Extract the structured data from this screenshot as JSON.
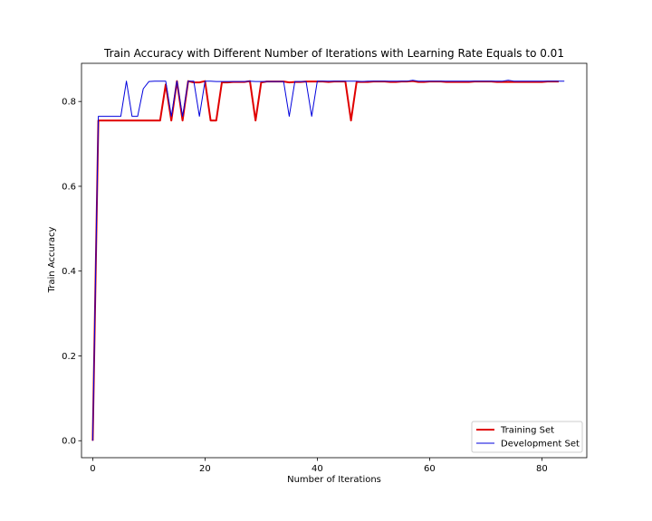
{
  "chart_data": {
    "type": "line",
    "title": "Train Accuracy with Different Number of Iterations with Learning Rate Equals to 0.01",
    "xlabel": "Number of Iterations",
    "ylabel": "Train Accuracy",
    "xlim": [
      -2,
      88
    ],
    "ylim": [
      -0.04,
      0.89
    ],
    "xticks": [
      0,
      20,
      40,
      60,
      80
    ],
    "yticks": [
      0.0,
      0.2,
      0.4,
      0.6,
      0.8
    ],
    "ytick_labels": [
      "0.0",
      "0.2",
      "0.4",
      "0.6",
      "0.8"
    ],
    "grid": false,
    "legend_position": "bottom-right",
    "series": [
      {
        "name": "Training Set",
        "color": "#e00000",
        "values": [
          0.0,
          0.755,
          0.755,
          0.755,
          0.755,
          0.755,
          0.755,
          0.755,
          0.755,
          0.755,
          0.755,
          0.755,
          0.755,
          0.84,
          0.755,
          0.848,
          0.755,
          0.848,
          0.845,
          0.845,
          0.848,
          0.755,
          0.755,
          0.845,
          0.845,
          0.846,
          0.846,
          0.846,
          0.848,
          0.755,
          0.845,
          0.847,
          0.847,
          0.847,
          0.847,
          0.845,
          0.846,
          0.846,
          0.847,
          0.847,
          0.847,
          0.847,
          0.846,
          0.847,
          0.847,
          0.847,
          0.755,
          0.846,
          0.846,
          0.846,
          0.847,
          0.847,
          0.847,
          0.846,
          0.846,
          0.847,
          0.847,
          0.848,
          0.846,
          0.846,
          0.847,
          0.847,
          0.847,
          0.846,
          0.846,
          0.846,
          0.846,
          0.846,
          0.847,
          0.847,
          0.847,
          0.847,
          0.846,
          0.846,
          0.846,
          0.846,
          0.846,
          0.846,
          0.846,
          0.846,
          0.846,
          0.847,
          0.847,
          0.847
        ]
      },
      {
        "name": "Development Set",
        "color": "#0000dd",
        "values": [
          0.0,
          0.765,
          0.765,
          0.765,
          0.765,
          0.765,
          0.848,
          0.765,
          0.765,
          0.83,
          0.847,
          0.848,
          0.848,
          0.848,
          0.765,
          0.848,
          0.765,
          0.848,
          0.848,
          0.765,
          0.848,
          0.848,
          0.847,
          0.847,
          0.847,
          0.847,
          0.847,
          0.847,
          0.848,
          0.847,
          0.847,
          0.847,
          0.847,
          0.847,
          0.847,
          0.765,
          0.847,
          0.847,
          0.847,
          0.765,
          0.848,
          0.848,
          0.848,
          0.848,
          0.848,
          0.848,
          0.848,
          0.848,
          0.847,
          0.848,
          0.848,
          0.848,
          0.848,
          0.848,
          0.848,
          0.848,
          0.848,
          0.85,
          0.848,
          0.848,
          0.848,
          0.848,
          0.848,
          0.848,
          0.848,
          0.848,
          0.848,
          0.848,
          0.848,
          0.848,
          0.848,
          0.848,
          0.848,
          0.848,
          0.85,
          0.848,
          0.848,
          0.848,
          0.848,
          0.848,
          0.848,
          0.848,
          0.848,
          0.848,
          0.848
        ]
      }
    ]
  }
}
